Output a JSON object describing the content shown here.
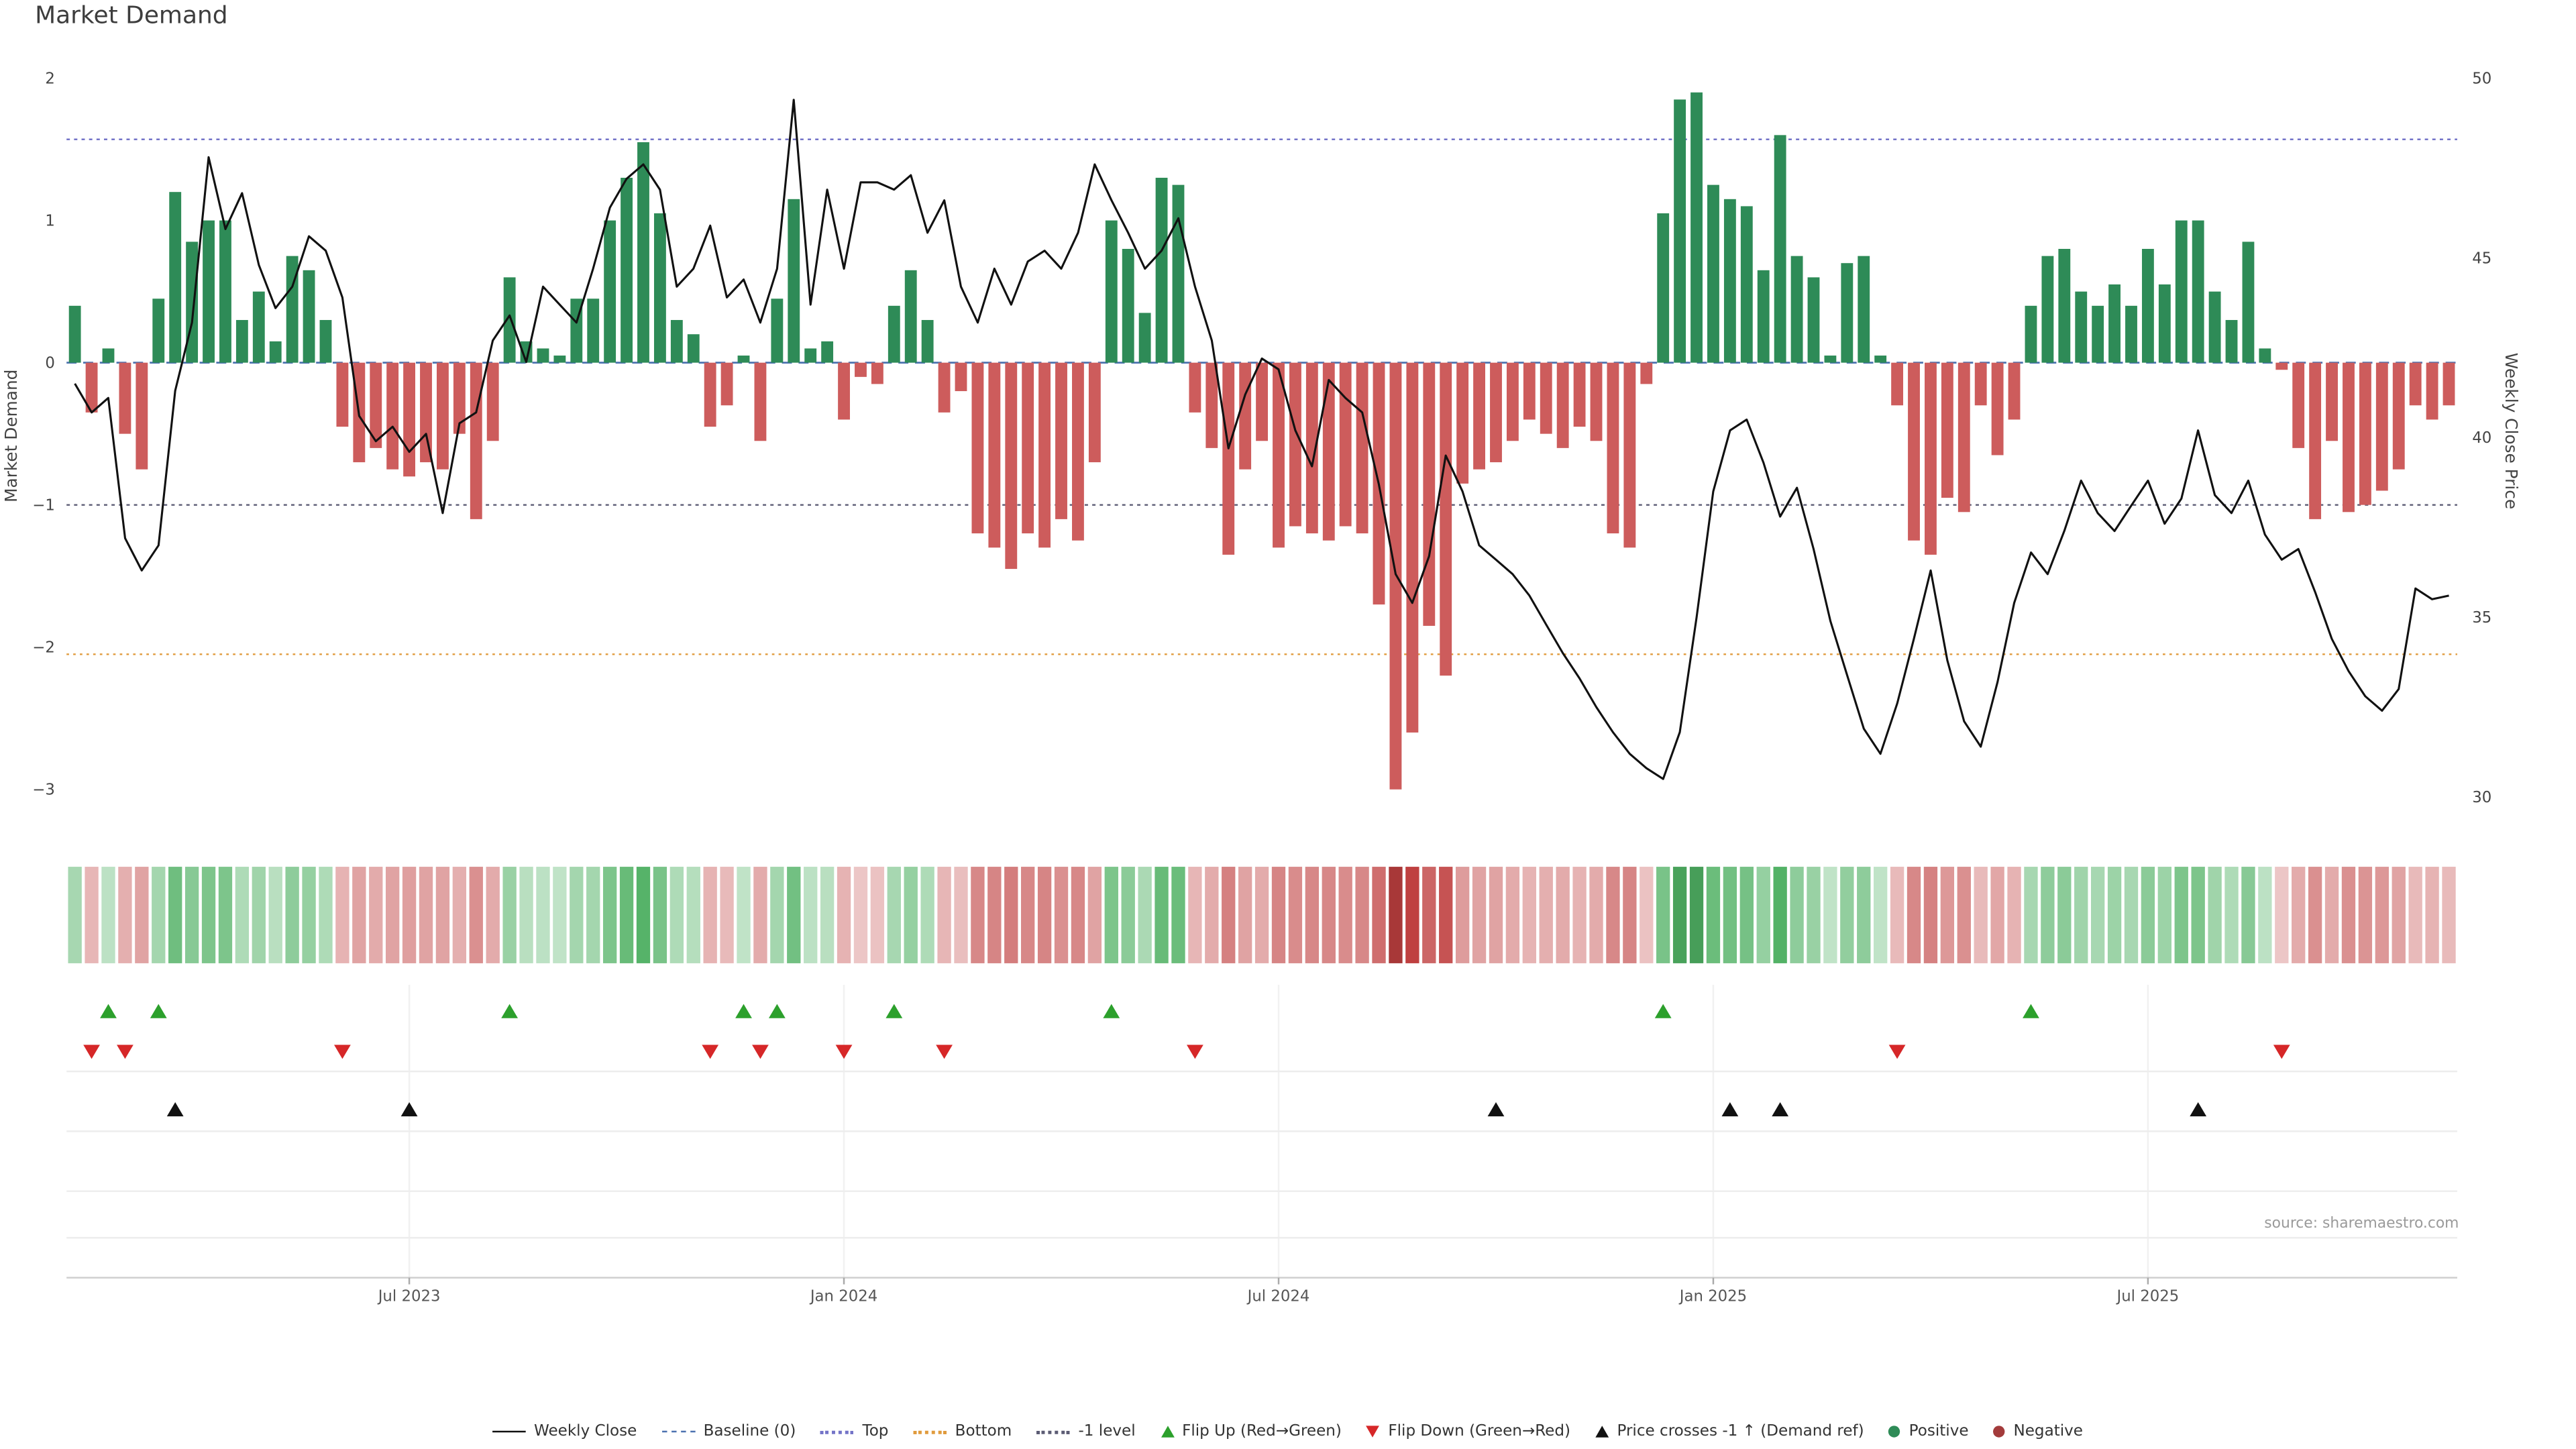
{
  "title": "Market Demand",
  "source": "source: sharemaestro.com",
  "colors": {
    "positive_bar": "#2e8b57",
    "negative_bar": "#cd5c5c",
    "price_line": "#111111",
    "baseline": "#4c72b0",
    "top_level": "#7474c8",
    "bottom_level": "#e09b3d",
    "minus1_level": "#5c5c74",
    "flip_up": "#2ca02c",
    "flip_down": "#d62728",
    "price_cross": "#111111",
    "positive_dot": "#2e8b57",
    "negative_dot": "#a33b3b"
  },
  "legend": {
    "items": [
      {
        "key": "weekly-close",
        "label": "Weekly Close",
        "swatch": "solid",
        "color": "#111111"
      },
      {
        "key": "baseline",
        "label": "Baseline (0)",
        "swatch": "dashed",
        "color": "#4c72b0"
      },
      {
        "key": "top",
        "label": "Top",
        "swatch": "dotted",
        "color": "#7474c8"
      },
      {
        "key": "bottom",
        "label": "Bottom",
        "swatch": "dotted",
        "color": "#e09b3d"
      },
      {
        "key": "minus1-level",
        "label": "-1 level",
        "swatch": "dotted",
        "color": "#5c5c74"
      },
      {
        "key": "flip-up",
        "label": "Flip Up (Red→Green)",
        "swatch": "tri-up",
        "color": "#2ca02c"
      },
      {
        "key": "flip-down",
        "label": "Flip Down (Green→Red)",
        "swatch": "tri-down",
        "color": "#d62728"
      },
      {
        "key": "price-cross",
        "label": "Price crosses -1 ↑ (Demand ref)",
        "swatch": "tri-up",
        "color": "#111111"
      },
      {
        "key": "positive",
        "label": "Positive",
        "swatch": "circle",
        "color": "#2e8b57"
      },
      {
        "key": "negative",
        "label": "Negative",
        "swatch": "circle",
        "color": "#a33b3b"
      }
    ]
  },
  "chart_data": {
    "type": "mixed",
    "x_unit": "week",
    "x_count": 143,
    "x_ticks": [
      {
        "label": "Jul 2023",
        "week": 20
      },
      {
        "label": "Jan 2024",
        "week": 46
      },
      {
        "label": "Jul 2024",
        "week": 72
      },
      {
        "label": "Jan 2025",
        "week": 98
      },
      {
        "label": "Jul 2025",
        "week": 124
      }
    ],
    "left_axis": {
      "label": "Market Demand",
      "ticks": [
        "2",
        "1",
        "0",
        "−1",
        "−2",
        "−3"
      ],
      "tick_values": [
        2,
        1,
        0,
        -1,
        -2,
        -3
      ],
      "range": [
        -3.1,
        2.1
      ]
    },
    "right_axis": {
      "label": "Weekly Close Price",
      "ticks": [
        "50",
        "45",
        "40",
        "35",
        "30"
      ],
      "tick_values": [
        50,
        45,
        40,
        35,
        30
      ],
      "range": [
        29.9,
        50.2
      ]
    },
    "levels": {
      "baseline": 0,
      "top": 1.57,
      "minus1": -1,
      "bottom": -2.05
    },
    "series": [
      {
        "name": "Market Demand",
        "type": "bar",
        "axis": "left",
        "values": [
          0.4,
          -0.35,
          0.1,
          -0.5,
          -0.75,
          0.45,
          1.2,
          0.85,
          1.0,
          1.0,
          0.3,
          0.5,
          0.15,
          0.75,
          0.65,
          0.3,
          -0.45,
          -0.7,
          -0.6,
          -0.75,
          -0.8,
          -0.7,
          -0.75,
          -0.5,
          -1.1,
          -0.55,
          0.6,
          0.15,
          0.1,
          0.05,
          0.45,
          0.45,
          1.0,
          1.3,
          1.55,
          1.05,
          0.3,
          0.2,
          -0.45,
          -0.3,
          0.05,
          -0.55,
          0.45,
          1.15,
          0.1,
          0.15,
          -0.4,
          -0.1,
          -0.15,
          0.4,
          0.65,
          0.3,
          -0.35,
          -0.2,
          -1.2,
          -1.3,
          -1.45,
          -1.2,
          -1.3,
          -1.1,
          -1.25,
          -0.7,
          1.0,
          0.8,
          0.35,
          1.3,
          1.25,
          -0.35,
          -0.6,
          -1.35,
          -0.75,
          -0.55,
          -1.3,
          -1.15,
          -1.2,
          -1.25,
          -1.15,
          -1.2,
          -1.7,
          -3.0,
          -2.6,
          -1.85,
          -2.2,
          -0.85,
          -0.75,
          -0.7,
          -0.55,
          -0.4,
          -0.5,
          -0.6,
          -0.45,
          -0.55,
          -1.2,
          -1.3,
          -0.15,
          1.05,
          1.85,
          1.9,
          1.25,
          1.15,
          1.1,
          0.65,
          1.6,
          0.75,
          0.6,
          0.05,
          0.7,
          0.75,
          0.05,
          -0.3,
          -1.25,
          -1.35,
          -0.95,
          -1.05,
          -0.3,
          -0.65,
          -0.4,
          0.4,
          0.75,
          0.8,
          0.5,
          0.4,
          0.55,
          0.4,
          0.8,
          0.55,
          1.0,
          1.0,
          0.5,
          0.3,
          0.85,
          0.1,
          -0.05,
          -0.6,
          -1.1,
          -0.55,
          -1.05,
          -1.0,
          -0.9,
          -0.75,
          -0.3,
          -0.4,
          -0.3
        ]
      },
      {
        "name": "Weekly Close",
        "type": "line",
        "axis": "right",
        "values": [
          41.5,
          40.7,
          41.1,
          37.2,
          36.3,
          37.0,
          41.3,
          43.2,
          47.8,
          45.8,
          46.8,
          44.8,
          43.6,
          44.2,
          45.6,
          45.2,
          43.9,
          40.6,
          39.9,
          40.3,
          39.6,
          40.1,
          37.9,
          40.4,
          40.7,
          42.7,
          43.4,
          42.1,
          44.2,
          43.7,
          43.2,
          44.7,
          46.4,
          47.2,
          47.6,
          46.9,
          44.2,
          44.7,
          45.9,
          43.9,
          44.4,
          43.2,
          44.7,
          49.4,
          43.7,
          46.9,
          44.7,
          47.1,
          47.1,
          46.9,
          47.3,
          45.7,
          46.6,
          44.2,
          43.2,
          44.7,
          43.7,
          44.9,
          45.2,
          44.7,
          45.7,
          47.6,
          46.6,
          45.7,
          44.7,
          45.2,
          46.1,
          44.2,
          42.7,
          39.7,
          41.2,
          42.2,
          41.9,
          40.2,
          39.2,
          41.6,
          41.1,
          40.7,
          38.7,
          36.2,
          35.4,
          36.7,
          39.5,
          38.5,
          37.0,
          36.6,
          36.2,
          35.6,
          34.8,
          34.0,
          33.3,
          32.5,
          31.8,
          31.2,
          30.8,
          30.5,
          31.8,
          35.0,
          38.5,
          40.2,
          40.5,
          39.3,
          37.8,
          38.6,
          36.9,
          34.9,
          33.4,
          31.9,
          31.2,
          32.6,
          34.4,
          36.3,
          33.8,
          32.1,
          31.4,
          33.2,
          35.4,
          36.8,
          36.2,
          37.4,
          38.8,
          37.9,
          37.4,
          38.1,
          38.8,
          37.6,
          38.3,
          40.2,
          38.4,
          37.9,
          38.8,
          37.3,
          36.6,
          36.9,
          35.7,
          34.4,
          33.5,
          32.8,
          32.4,
          33.0,
          35.8,
          35.5,
          35.6
        ]
      }
    ],
    "heatmap": {
      "source_series": "Market Demand",
      "position": "below-chart"
    },
    "markers": {
      "flip_up_weeks": [
        2,
        5,
        26,
        40,
        42,
        49,
        62,
        95,
        117
      ],
      "flip_down_weeks": [
        1,
        3,
        16,
        38,
        41,
        46,
        52,
        67,
        109,
        132
      ],
      "price_cross_weeks": [
        6,
        20,
        85,
        99,
        102,
        127
      ]
    },
    "grid": "light horizontal lines in lower panel",
    "legend_position": "bottom-center"
  }
}
